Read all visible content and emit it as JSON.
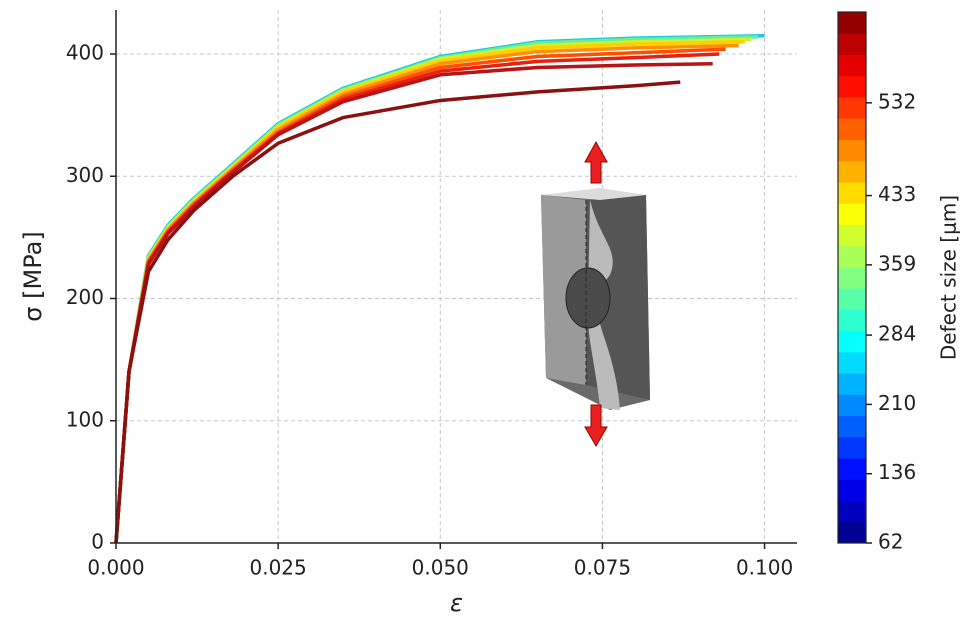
{
  "chart_data": {
    "type": "line",
    "xlabel": "ε",
    "ylabel": "σ [MPa]",
    "xlim": [
      0,
      0.105
    ],
    "ylim": [
      0,
      436
    ],
    "xticks": [
      {
        "value": 0,
        "label": "0.000"
      },
      0.025,
      {
        "value": 0.05,
        "label": "0.050"
      },
      0.075,
      {
        "value": 0.1,
        "label": "0.100"
      }
    ],
    "yticks": [
      0,
      100,
      200,
      300,
      400
    ],
    "grid": true,
    "series": [
      {
        "color": "#1ac8e0",
        "x": [
          0,
          0.002,
          0.005,
          0.008,
          0.012,
          0.018,
          0.025,
          0.035,
          0.05,
          0.065,
          0.08,
          0.1
        ],
        "values": [
          0,
          140,
          235,
          260,
          282,
          310,
          343,
          372,
          398,
          410,
          413,
          415
        ]
      },
      {
        "color": "#60f0a0",
        "x": [
          0,
          0.002,
          0.005,
          0.008,
          0.012,
          0.018,
          0.025,
          0.035,
          0.05,
          0.065,
          0.08,
          0.099
        ],
        "values": [
          0,
          140,
          234,
          259,
          281,
          309,
          342,
          371,
          397,
          409,
          412,
          414
        ]
      },
      {
        "color": "#d0f030",
        "x": [
          0,
          0.002,
          0.005,
          0.008,
          0.012,
          0.018,
          0.025,
          0.035,
          0.05,
          0.065,
          0.08,
          0.098
        ],
        "values": [
          0,
          140,
          233,
          258,
          280,
          308,
          341,
          370,
          396,
          407,
          410,
          412
        ]
      },
      {
        "color": "#ffd000",
        "x": [
          0,
          0.002,
          0.005,
          0.008,
          0.012,
          0.018,
          0.025,
          0.035,
          0.05,
          0.065,
          0.08,
          0.097
        ],
        "values": [
          0,
          140,
          232,
          257,
          279,
          307,
          340,
          369,
          394,
          405,
          408,
          410
        ]
      },
      {
        "color": "#ff9000",
        "x": [
          0,
          0.002,
          0.005,
          0.008,
          0.012,
          0.018,
          0.025,
          0.035,
          0.05,
          0.065,
          0.08,
          0.096
        ],
        "values": [
          0,
          140,
          231,
          256,
          278,
          306,
          338,
          367,
          392,
          402,
          405,
          407
        ]
      },
      {
        "color": "#ff5000",
        "x": [
          0,
          0.002,
          0.005,
          0.008,
          0.012,
          0.018,
          0.025,
          0.035,
          0.05,
          0.065,
          0.08,
          0.094
        ],
        "values": [
          0,
          140,
          230,
          255,
          277,
          305,
          336,
          365,
          389,
          398,
          401,
          404
        ]
      },
      {
        "color": "#e82010",
        "x": [
          0,
          0.002,
          0.005,
          0.008,
          0.012,
          0.018,
          0.025,
          0.035,
          0.05,
          0.065,
          0.08,
          0.093
        ],
        "values": [
          0,
          140,
          229,
          254,
          276,
          304,
          335,
          363,
          386,
          394,
          397,
          400
        ]
      },
      {
        "color": "#b81414",
        "x": [
          0,
          0.002,
          0.005,
          0.008,
          0.012,
          0.018,
          0.025,
          0.035,
          0.05,
          0.065,
          0.08,
          0.092
        ],
        "values": [
          0,
          140,
          228,
          253,
          275,
          303,
          334,
          361,
          383,
          389,
          391,
          392
        ]
      },
      {
        "color": "#8b1010",
        "x": [
          0,
          0.002,
          0.005,
          0.008,
          0.012,
          0.018,
          0.025,
          0.035,
          0.05,
          0.065,
          0.08,
          0.087
        ],
        "values": [
          0,
          140,
          222,
          248,
          272,
          300,
          327,
          348,
          362,
          369,
          374,
          377
        ]
      }
    ],
    "colorbar": {
      "label": "Defect size [μm]",
      "colormap": "jet",
      "lim": [
        62,
        629
      ],
      "ticks": [
        62,
        136,
        210,
        284,
        359,
        433,
        532
      ]
    }
  }
}
